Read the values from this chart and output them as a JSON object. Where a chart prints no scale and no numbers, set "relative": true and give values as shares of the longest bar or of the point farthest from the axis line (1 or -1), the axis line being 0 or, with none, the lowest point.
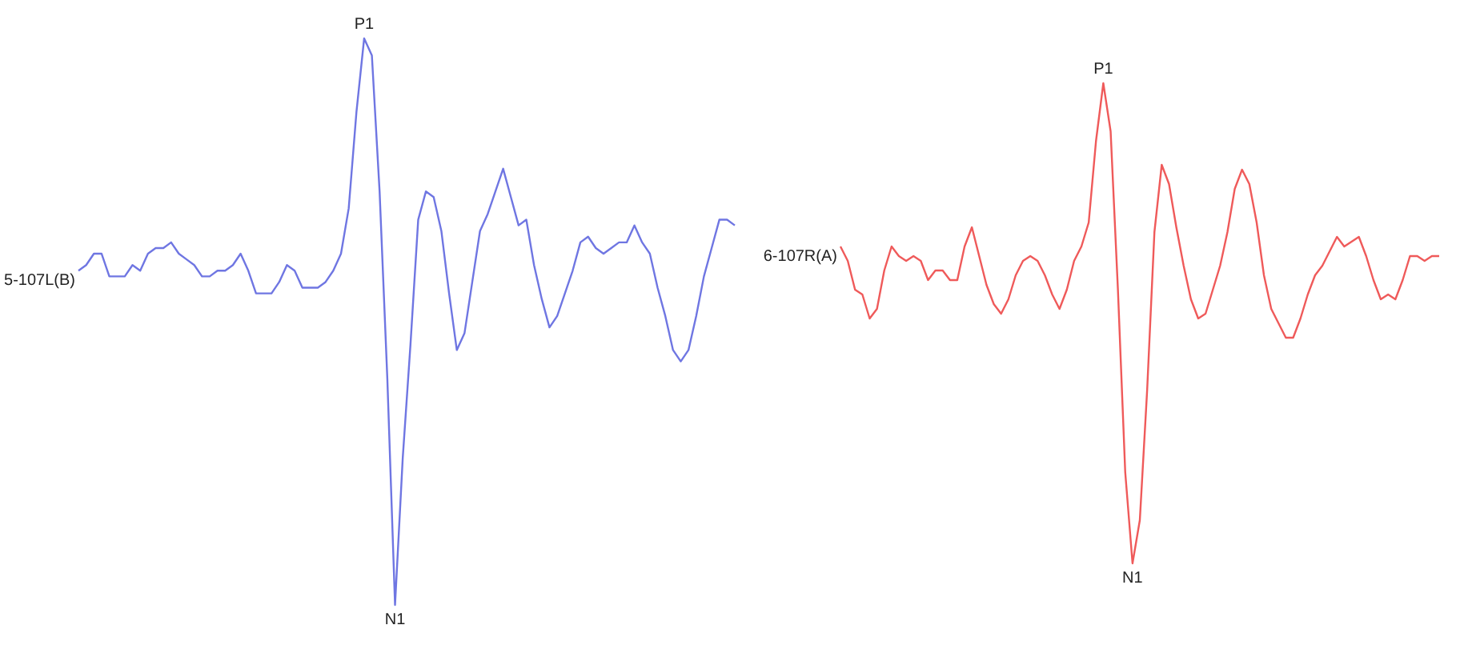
{
  "chart_data": [
    {
      "type": "line",
      "relative": true,
      "categories": [
        null,
        null,
        null,
        null,
        null,
        null,
        null,
        null,
        null,
        null,
        null,
        null,
        null,
        null,
        null,
        null,
        null,
        null,
        null,
        null,
        null,
        null,
        null,
        null,
        null,
        null,
        null,
        null,
        null,
        null,
        null,
        null,
        null,
        null,
        null,
        null,
        null,
        null,
        null,
        null,
        null,
        null,
        null,
        null,
        null,
        null,
        null,
        null,
        null,
        null,
        null,
        null,
        null,
        null,
        null,
        null,
        null,
        null,
        null,
        null,
        null,
        null,
        null,
        null,
        null,
        null,
        null,
        null,
        null,
        null,
        null,
        null,
        null,
        null,
        null,
        null,
        null,
        null,
        null,
        null,
        null,
        null,
        null,
        null,
        null,
        null
      ],
      "series": [
        {
          "name": "5-107L(B)",
          "color": "#6f76e2",
          "values": [
            0.59,
            0.6,
            0.62,
            0.62,
            0.58,
            0.58,
            0.58,
            0.6,
            0.59,
            0.62,
            0.63,
            0.63,
            0.64,
            0.62,
            0.61,
            0.6,
            0.58,
            0.58,
            0.59,
            0.59,
            0.6,
            0.62,
            0.59,
            0.55,
            0.55,
            0.55,
            0.57,
            0.6,
            0.59,
            0.56,
            0.56,
            0.56,
            0.57,
            0.59,
            0.62,
            0.7,
            0.87,
            1.0,
            0.97,
            0.73,
            0.4,
            0.0,
            0.26,
            0.46,
            0.68,
            0.73,
            0.72,
            0.66,
            0.55,
            0.45,
            0.48,
            0.57,
            0.66,
            0.69,
            0.73,
            0.77,
            0.72,
            0.67,
            0.68,
            0.6,
            0.54,
            0.49,
            0.51,
            0.55,
            0.59,
            0.64,
            0.65,
            0.63,
            0.62,
            0.63,
            0.64,
            0.64,
            0.67,
            0.64,
            0.62,
            0.56,
            0.51,
            0.45,
            0.43,
            0.45,
            0.51,
            0.58,
            0.63,
            0.68,
            0.68,
            0.67
          ]
        }
      ],
      "annotations": [
        {
          "text": "P1",
          "y": 1.0
        },
        {
          "text": "N1",
          "y": 0.0
        }
      ]
    },
    {
      "type": "line",
      "relative": true,
      "categories": [
        null,
        null,
        null,
        null,
        null,
        null,
        null,
        null,
        null,
        null,
        null,
        null,
        null,
        null,
        null,
        null,
        null,
        null,
        null,
        null,
        null,
        null,
        null,
        null,
        null,
        null,
        null,
        null,
        null,
        null,
        null,
        null,
        null,
        null,
        null,
        null,
        null,
        null,
        null,
        null,
        null,
        null,
        null,
        null,
        null,
        null,
        null,
        null,
        null,
        null,
        null,
        null,
        null,
        null,
        null,
        null,
        null,
        null,
        null,
        null,
        null,
        null,
        null,
        null,
        null,
        null,
        null,
        null,
        null,
        null,
        null,
        null,
        null,
        null,
        null,
        null,
        null,
        null,
        null,
        null,
        null,
        null,
        null
      ],
      "series": [
        {
          "name": "6-107R(A)",
          "color": "#ef5a5a",
          "values": [
            0.66,
            0.63,
            0.57,
            0.56,
            0.51,
            0.53,
            0.61,
            0.66,
            0.64,
            0.63,
            0.64,
            0.63,
            0.59,
            0.61,
            0.61,
            0.59,
            0.59,
            0.66,
            0.7,
            0.64,
            0.58,
            0.54,
            0.52,
            0.55,
            0.6,
            0.63,
            0.64,
            0.63,
            0.6,
            0.56,
            0.53,
            0.57,
            0.63,
            0.66,
            0.71,
            0.88,
            1.0,
            0.9,
            0.57,
            0.19,
            0.0,
            0.09,
            0.36,
            0.69,
            0.83,
            0.79,
            0.7,
            0.62,
            0.55,
            0.51,
            0.52,
            0.57,
            0.62,
            0.69,
            0.78,
            0.82,
            0.79,
            0.71,
            0.6,
            0.53,
            0.5,
            0.47,
            0.47,
            0.51,
            0.56,
            0.6,
            0.62,
            0.65,
            0.68,
            0.66,
            0.67,
            0.68,
            0.64,
            0.59,
            0.55,
            0.56,
            0.55,
            0.59,
            0.64,
            0.64,
            0.63,
            0.64,
            0.64
          ]
        }
      ],
      "annotations": [
        {
          "text": "P1",
          "y": 1.0
        },
        {
          "text": "N1",
          "y": 0.0
        }
      ]
    }
  ]
}
